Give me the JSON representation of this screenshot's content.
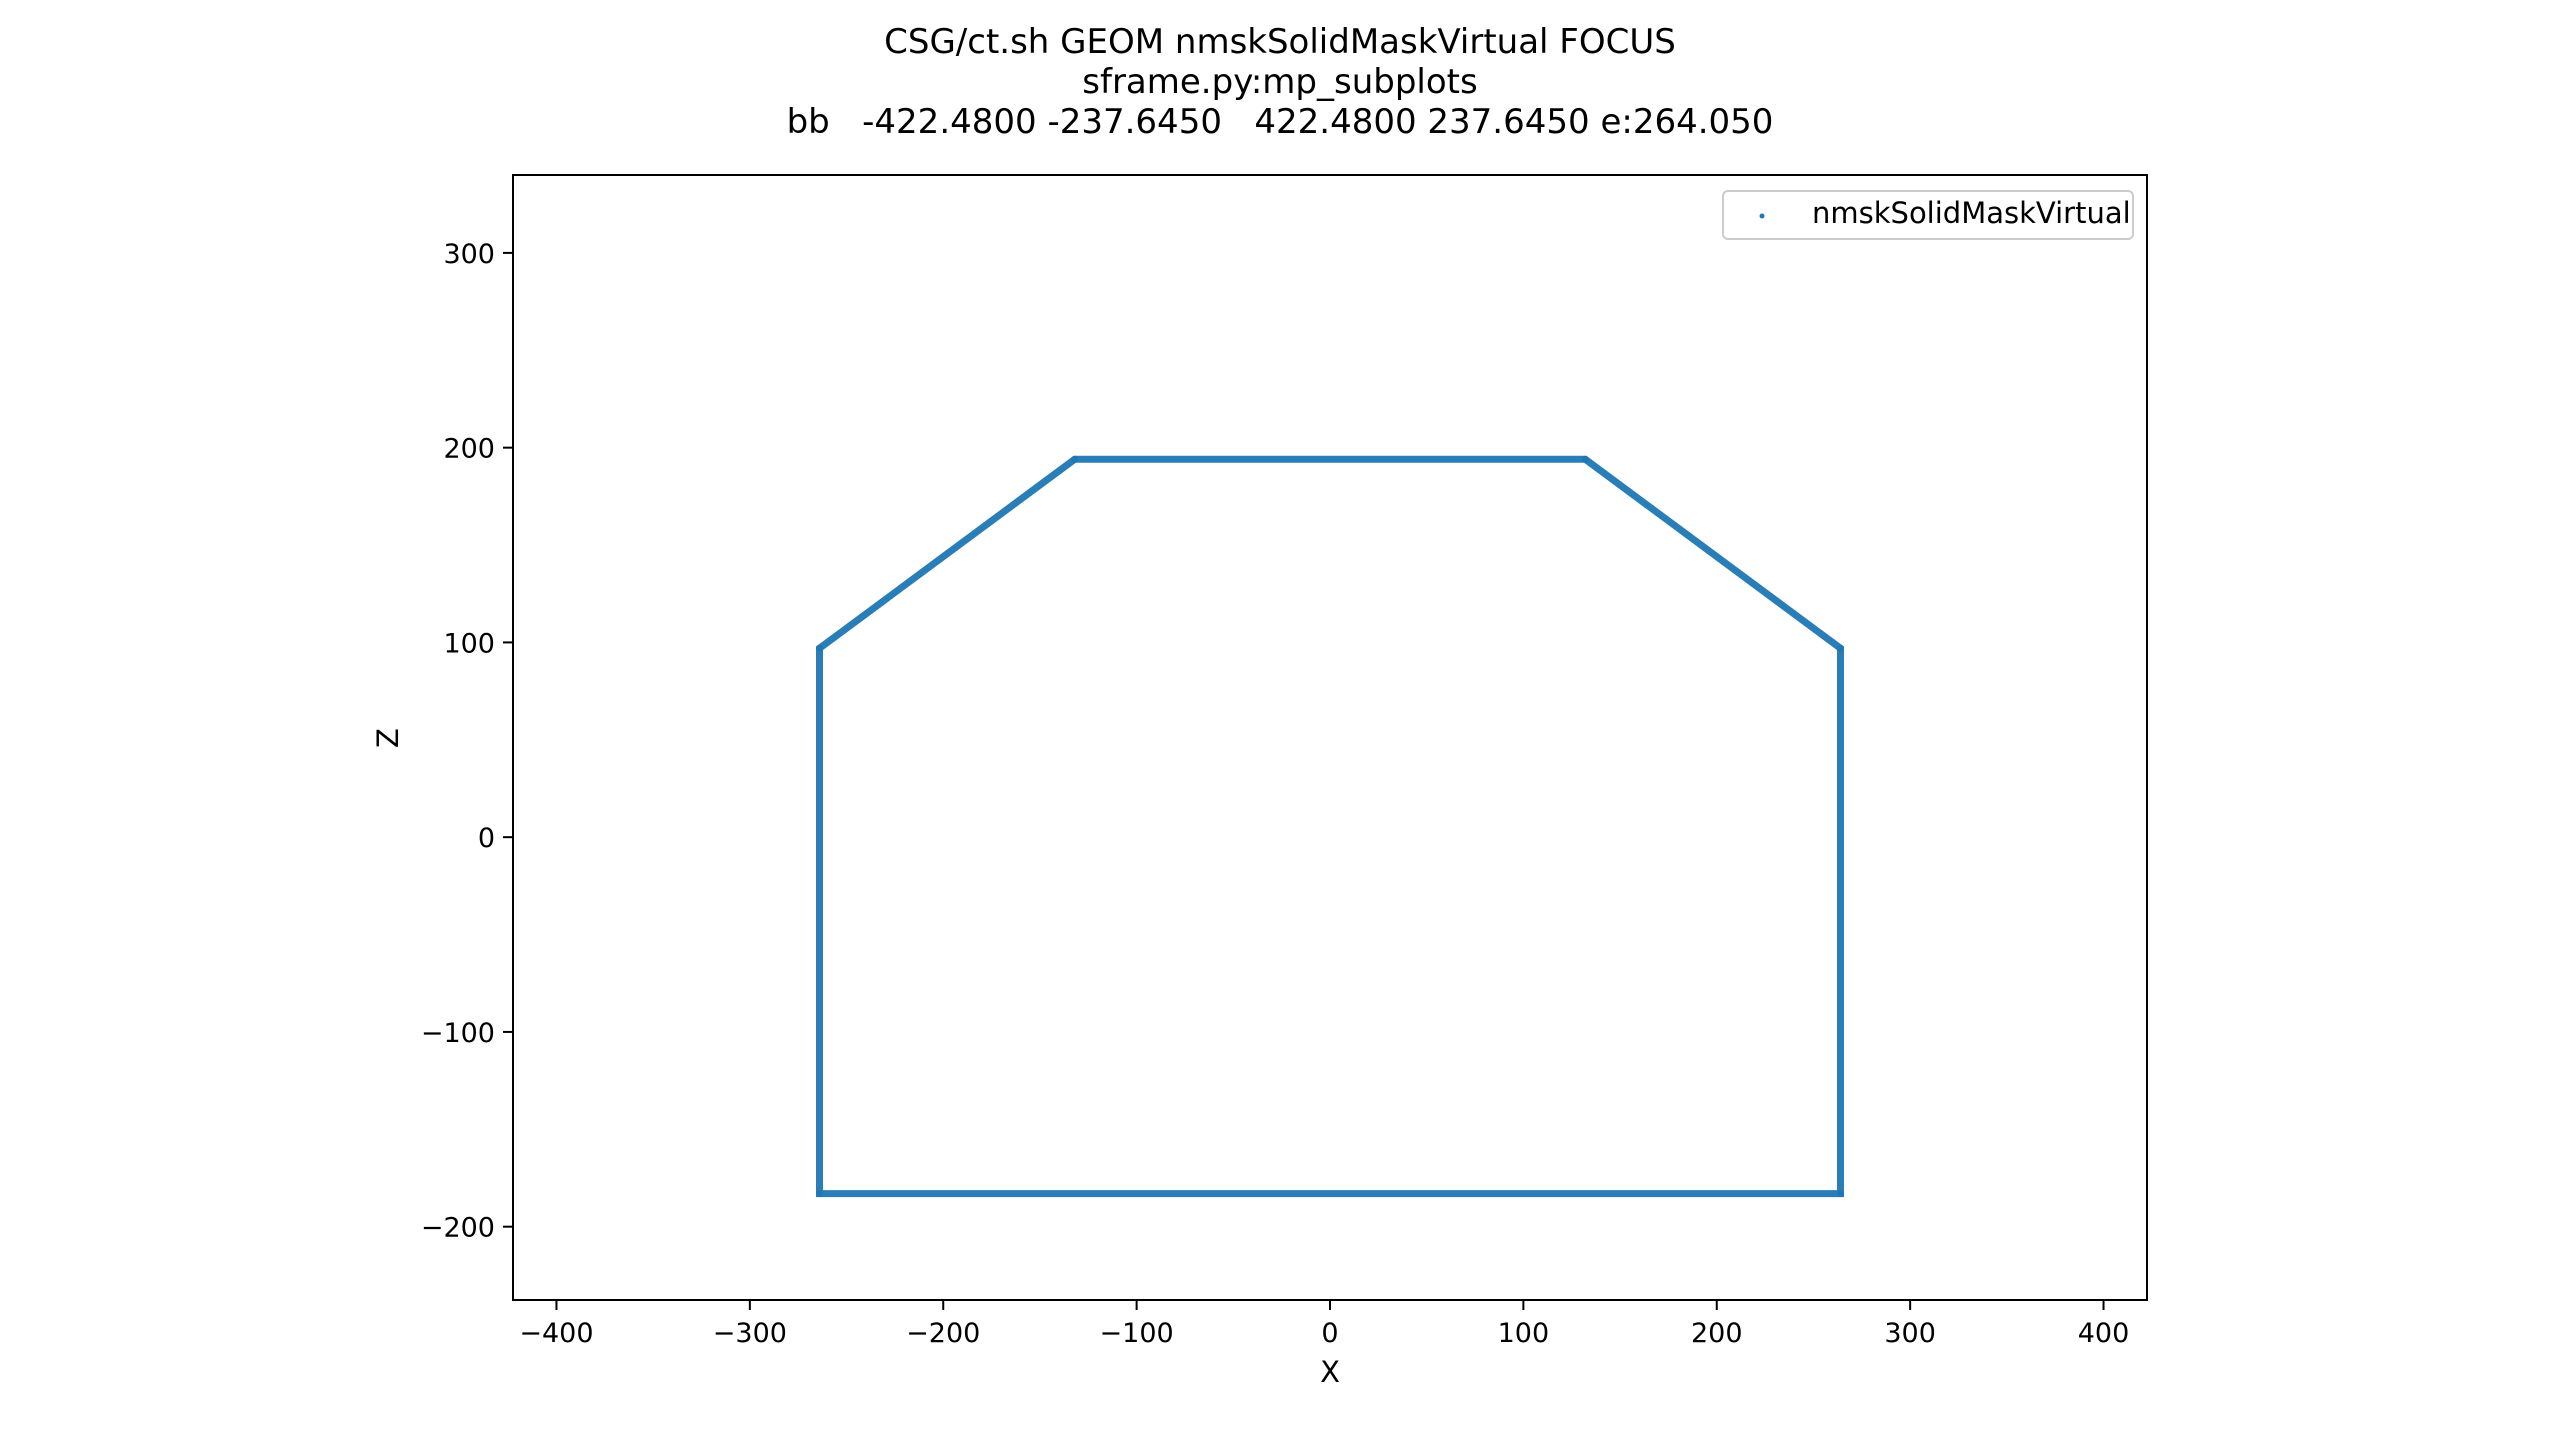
{
  "chart_data": {
    "type": "scatter",
    "title_lines": [
      "CSG/ct.sh GEOM nmskSolidMaskVirtual FOCUS",
      "sframe.py:mp_subplots",
      "bb   -422.4800 -237.6450   422.4800 237.6450 e:264.050"
    ],
    "xlabel": "X",
    "ylabel": "Z",
    "xlim": [
      -422.48,
      422.48
    ],
    "ylim": [
      -237.645,
      340
    ],
    "xticks": [
      -400,
      -300,
      -200,
      -100,
      0,
      100,
      200,
      300,
      400
    ],
    "xtick_labels": [
      "−400",
      "−300",
      "−200",
      "−100",
      "0",
      "100",
      "200",
      "300",
      "400"
    ],
    "yticks": [
      -200,
      -100,
      0,
      100,
      200,
      300
    ],
    "ytick_labels": [
      "−200",
      "−100",
      "0",
      "100",
      "200",
      "300"
    ],
    "grid": false,
    "legend_position": "top-right",
    "series": [
      {
        "name": "nmskSolidMaskVirtual",
        "color": "#1f77b4",
        "outline_vertices": [
          [
            -264,
            -183
          ],
          [
            -264,
            97
          ],
          [
            -132,
            194
          ],
          [
            132,
            194
          ],
          [
            264,
            97
          ],
          [
            264,
            -183
          ]
        ]
      }
    ]
  }
}
